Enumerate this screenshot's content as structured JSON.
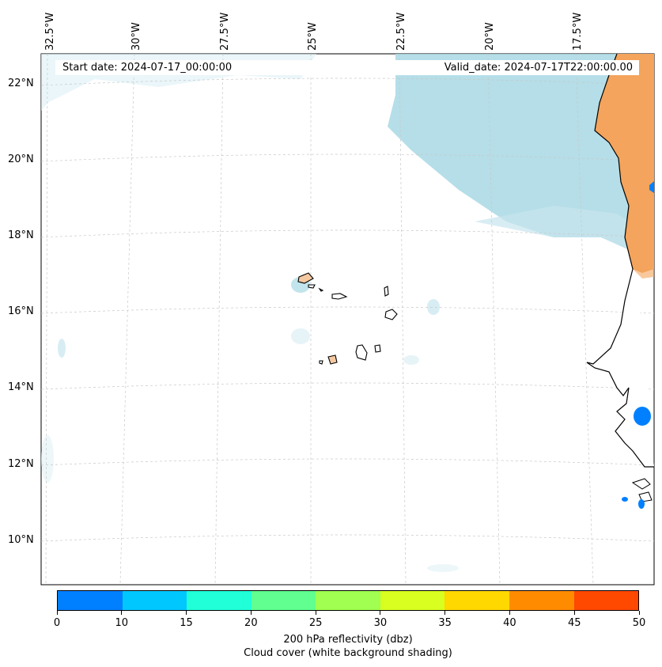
{
  "header": {
    "start_text": "Start date: 2024-07-17_00:00:00",
    "valid_text": "Valid_date: 2024-07-17T22:00:00.00"
  },
  "axes": {
    "lon_labels": [
      "32.5°W",
      "30°W",
      "27.5°W",
      "25°W",
      "22.5°W",
      "20°W",
      "17.5°W"
    ],
    "lat_labels": [
      "22°N",
      "20°N",
      "18°N",
      "16°N",
      "14°N",
      "12°N",
      "10°N"
    ]
  },
  "colorbar": {
    "ticks": [
      "0",
      "10",
      "15",
      "20",
      "25",
      "30",
      "35",
      "40",
      "45",
      "50"
    ],
    "colors": [
      "#0080ff",
      "#00c8ff",
      "#20ffd8",
      "#60ff90",
      "#a0ff50",
      "#d8ff20",
      "#ffd800",
      "#ff8c00",
      "#ff4800"
    ],
    "label_line1": "200 hPa reflectivity (dbz)",
    "label_line2": "Cloud cover (white background shading)"
  },
  "colors": {
    "cloud": "#a8d8e4",
    "land_dust": "#f4a45c",
    "reflectivity_low": "#0080ff"
  }
}
